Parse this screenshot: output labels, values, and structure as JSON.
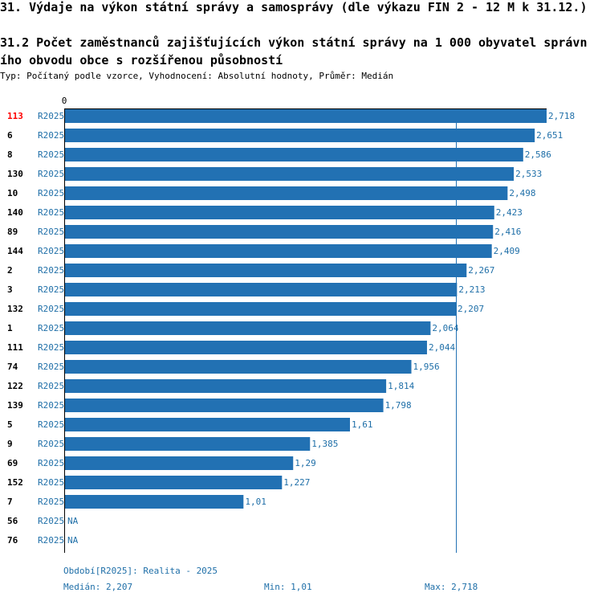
{
  "title": "31. Výdaje na výkon státní správy a samosprávy (dle výkazu FIN 2 - 12 M k 31.12.)",
  "subtitle_line1": "31.2 Počet zaměstnanců zajišťujících výkon státní správy na 1 000 obyvatel správn",
  "subtitle_line2": "ího obvodu obce s rozšířenou působností",
  "meta": "Typ: Počítaný podle vzorce, Vyhodnocení: Absolutní hodnoty, Průměr: Medián",
  "footer": {
    "period": "Období[R2025]: Realita - 2025",
    "median": "Medián: 2,207",
    "min": "Min: 1,01",
    "max": "Max: 2,718"
  },
  "colors": {
    "bar": "#2271b3",
    "label": "#1f6fa8",
    "highlight": "#ff0000"
  },
  "chart_data": {
    "type": "bar",
    "orientation": "horizontal",
    "axis_zero_label": "0",
    "xlim": [
      0,
      2.718
    ],
    "median_value": 2.207,
    "series_label": "R2025",
    "highlight_category": "113",
    "categories": [
      "113",
      "6",
      "8",
      "130",
      "10",
      "140",
      "89",
      "144",
      "2",
      "3",
      "132",
      "1",
      "111",
      "74",
      "122",
      "139",
      "5",
      "9",
      "69",
      "152",
      "7",
      "56",
      "76"
    ],
    "values": [
      2.718,
      2.651,
      2.586,
      2.533,
      2.498,
      2.423,
      2.416,
      2.409,
      2.267,
      2.213,
      2.207,
      2.064,
      2.044,
      1.956,
      1.814,
      1.798,
      1.61,
      1.385,
      1.29,
      1.227,
      1.01,
      null,
      null
    ],
    "value_labels": [
      "2,718",
      "2,651",
      "2,586",
      "2,533",
      "2,498",
      "2,423",
      "2,416",
      "2,409",
      "2,267",
      "2,213",
      "2,207",
      "2,064",
      "2,044",
      "1,956",
      "1,814",
      "1,798",
      "1,61",
      "1,385",
      "1,29",
      "1,227",
      "1,01",
      "NA",
      "NA"
    ]
  }
}
